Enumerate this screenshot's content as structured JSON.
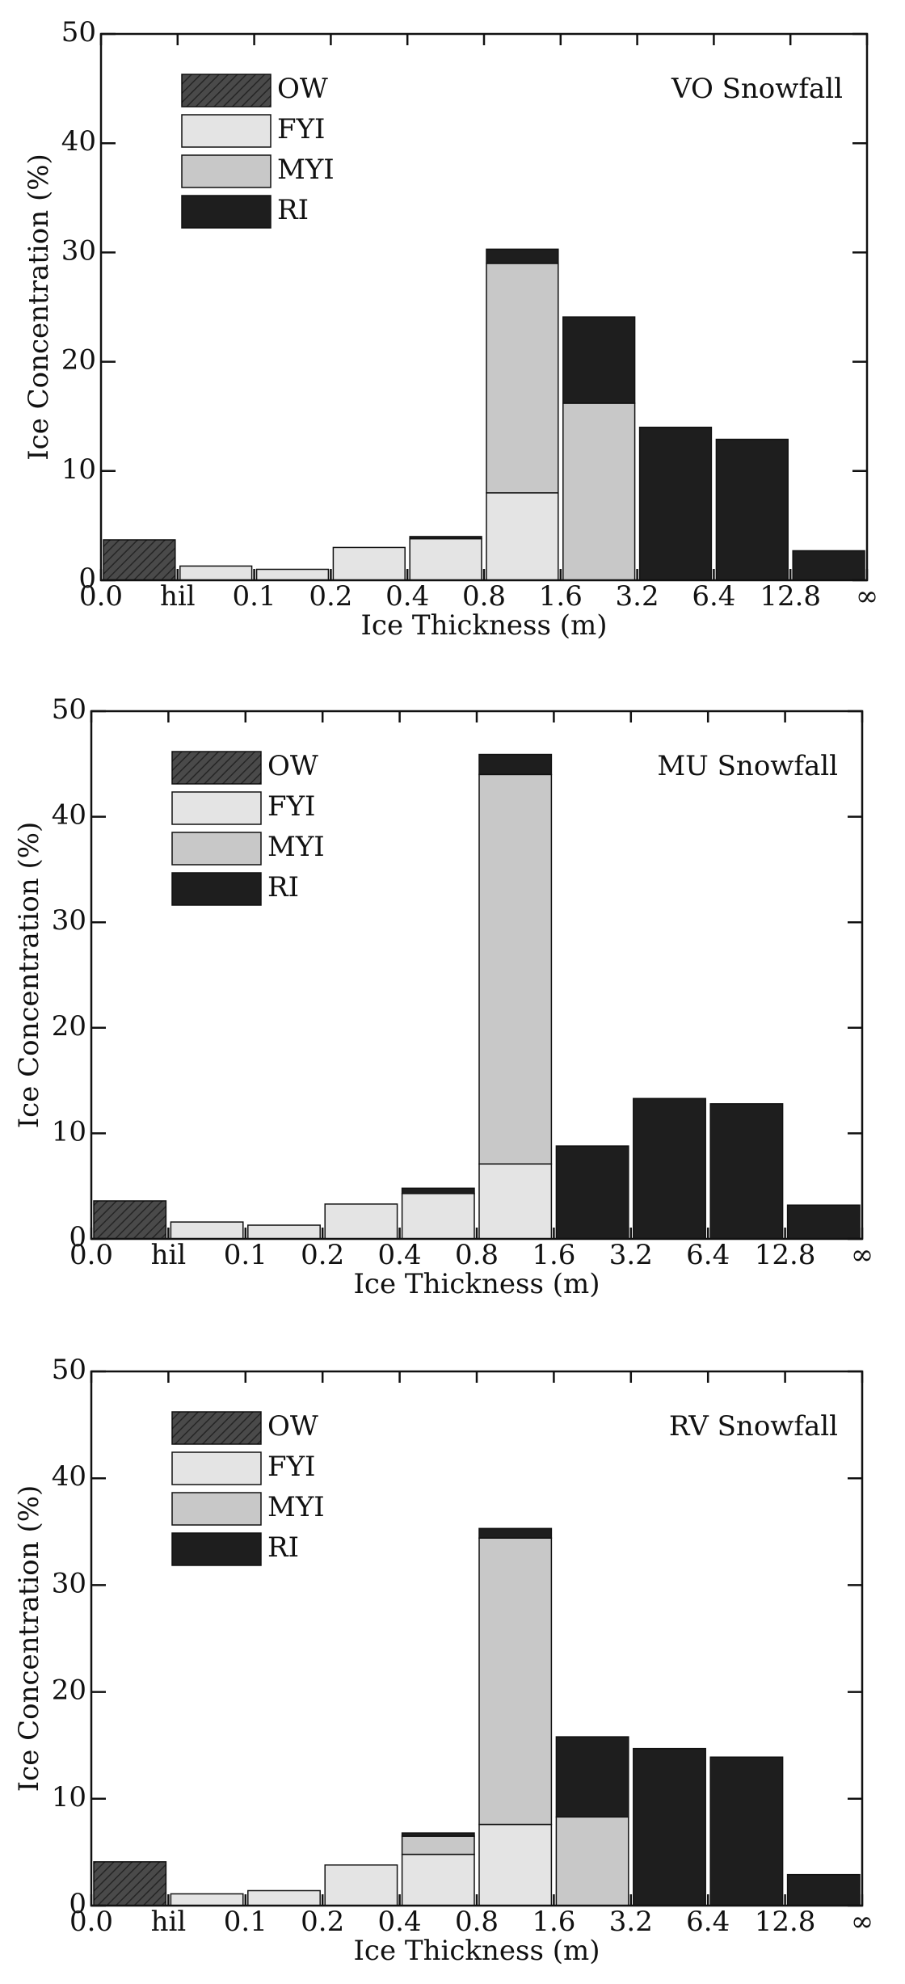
{
  "chart_data": [
    {
      "type": "bar",
      "stacked": true,
      "annotation": "VO Snowfall",
      "x_label": "Ice Thickness (m)",
      "y_label": "Ice Concentration (%)",
      "bin_edges": [
        "0.0",
        "hil",
        "0.1",
        "0.2",
        "0.4",
        "0.8",
        "1.6",
        "3.2",
        "6.4",
        "12.8",
        "∞"
      ],
      "series": [
        {
          "name": "OW",
          "color": "#4a4a4a",
          "values": [
            3.7,
            0,
            0,
            0,
            0,
            0,
            0,
            0,
            0,
            0
          ]
        },
        {
          "name": "FYI",
          "color": "#e4e4e4",
          "values": [
            0,
            1.3,
            1.0,
            3.0,
            3.8,
            8.0,
            0,
            0,
            0,
            0
          ]
        },
        {
          "name": "MYI",
          "color": "#c8c8c8",
          "values": [
            0,
            0,
            0,
            0,
            0,
            21.0,
            16.2,
            0,
            0,
            0
          ]
        },
        {
          "name": "RI",
          "color": "#1e1e1e",
          "values": [
            0,
            0,
            0,
            0,
            0.2,
            1.3,
            7.9,
            14.0,
            12.9,
            2.7
          ]
        }
      ],
      "ylim": [
        0,
        50
      ],
      "yticks": [
        0,
        10,
        20,
        30,
        40,
        50
      ],
      "legend": "upper left"
    },
    {
      "type": "bar",
      "stacked": true,
      "annotation": "MU Snowfall",
      "x_label": "Ice Thickness (m)",
      "y_label": "Ice Concentration (%)",
      "bin_edges": [
        "0.0",
        "hil",
        "0.1",
        "0.2",
        "0.4",
        "0.8",
        "1.6",
        "3.2",
        "6.4",
        "12.8",
        "∞"
      ],
      "series": [
        {
          "name": "OW",
          "color": "#4a4a4a",
          "values": [
            3.6,
            0,
            0,
            0,
            0,
            0,
            0,
            0,
            0,
            0
          ]
        },
        {
          "name": "FYI",
          "color": "#e4e4e4",
          "values": [
            0,
            1.6,
            1.3,
            3.3,
            4.3,
            7.1,
            0,
            0,
            0,
            0
          ]
        },
        {
          "name": "MYI",
          "color": "#c8c8c8",
          "values": [
            0,
            0,
            0,
            0,
            0,
            36.9,
            0,
            0,
            0,
            0
          ]
        },
        {
          "name": "RI",
          "color": "#1e1e1e",
          "values": [
            0,
            0,
            0,
            0,
            0.5,
            1.9,
            8.8,
            13.3,
            12.8,
            3.2
          ]
        }
      ],
      "ylim": [
        0,
        50
      ],
      "yticks": [
        0,
        10,
        20,
        30,
        40,
        50
      ],
      "legend": "upper left"
    },
    {
      "type": "bar",
      "stacked": true,
      "annotation": "RV Snowfall",
      "x_label": "Ice Thickness (m)",
      "y_label": "Ice Concentration (%)",
      "bin_edges": [
        "0.0",
        "hil",
        "0.1",
        "0.2",
        "0.4",
        "0.8",
        "1.6",
        "3.2",
        "6.4",
        "12.8",
        "∞"
      ],
      "series": [
        {
          "name": "OW",
          "color": "#4a4a4a",
          "values": [
            4.1,
            0,
            0,
            0,
            0,
            0,
            0,
            0,
            0,
            0
          ]
        },
        {
          "name": "FYI",
          "color": "#e4e4e4",
          "values": [
            0,
            1.1,
            1.4,
            3.8,
            4.8,
            7.6,
            0,
            0,
            0,
            0
          ]
        },
        {
          "name": "MYI",
          "color": "#c8c8c8",
          "values": [
            0,
            0,
            0,
            0,
            1.7,
            26.8,
            8.3,
            0,
            0,
            0
          ]
        },
        {
          "name": "RI",
          "color": "#1e1e1e",
          "values": [
            0,
            0,
            0,
            0,
            0.3,
            0.9,
            7.5,
            14.7,
            13.9,
            2.9
          ]
        }
      ],
      "ylim": [
        0,
        50
      ],
      "yticks": [
        0,
        10,
        20,
        30,
        40,
        50
      ],
      "legend": "upper left"
    }
  ]
}
